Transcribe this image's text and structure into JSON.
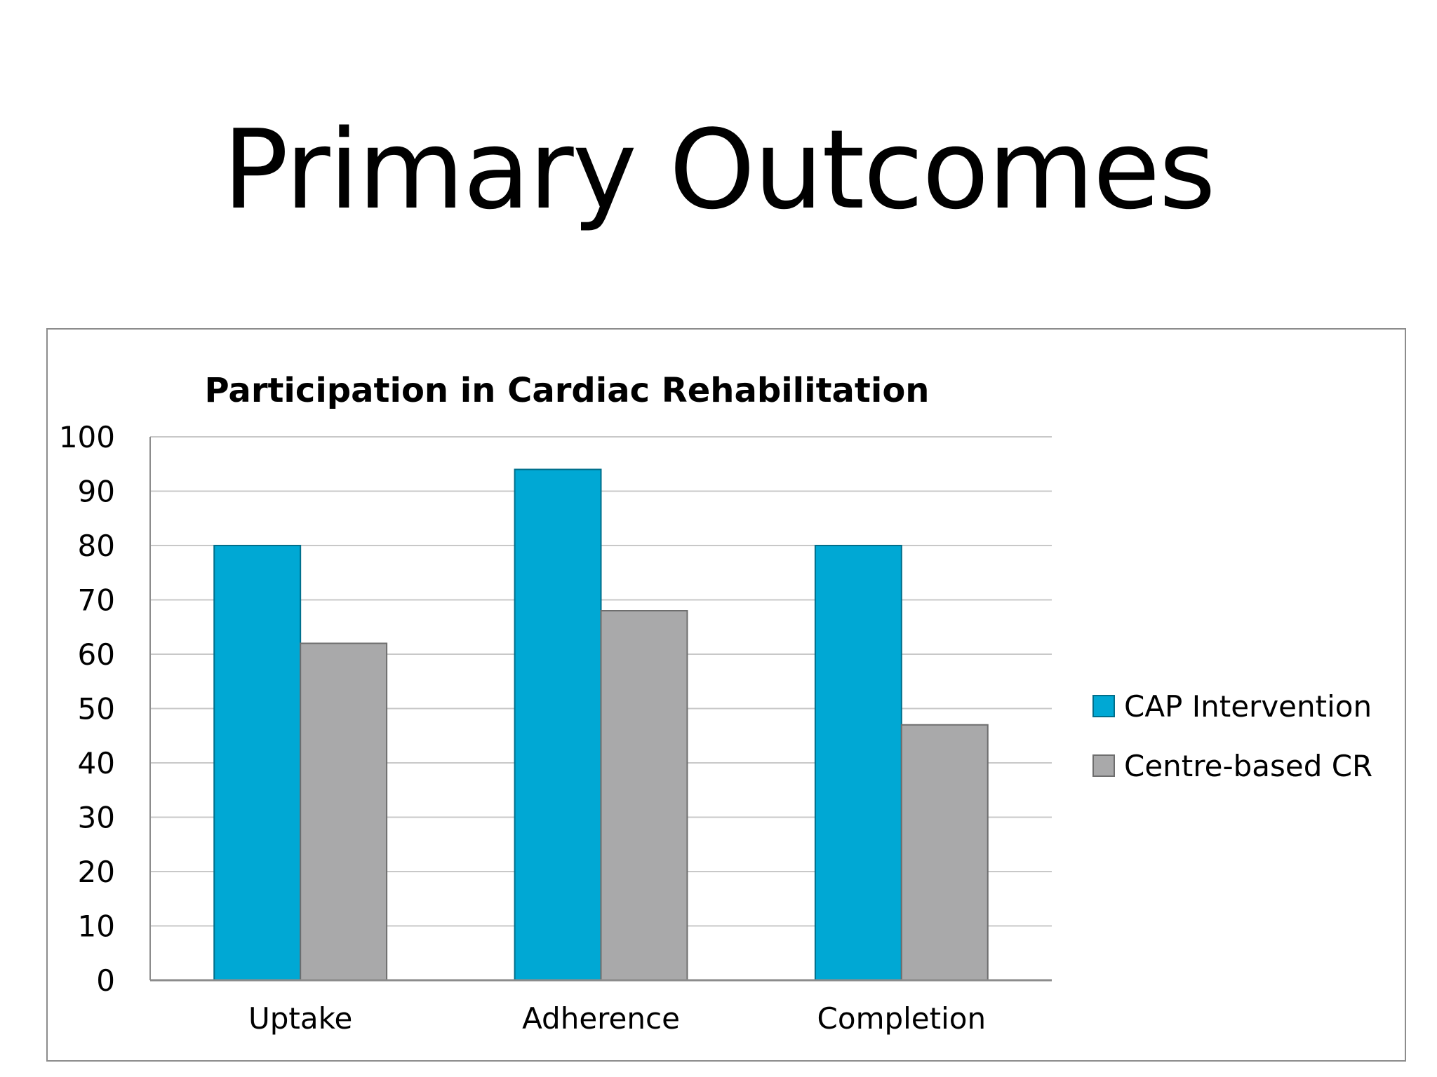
{
  "slide": {
    "title": "Primary Outcomes"
  },
  "colors": {
    "series_cap": "#00a8d4",
    "series_cap_border": "#006e8a",
    "series_centre": "#a9a9aa",
    "series_centre_border": "#6e6e6e",
    "gridline": "#c8c8c8",
    "axis": "#8c8c8c",
    "text": "#000000"
  },
  "chart_data": {
    "type": "bar",
    "title": "Participation  in Cardiac Rehabilitation",
    "xlabel": "",
    "ylabel": "",
    "categories": [
      "Uptake",
      "Adherence",
      "Completion"
    ],
    "series": [
      {
        "name": "CAP Intervention",
        "values": [
          80,
          94,
          80
        ]
      },
      {
        "name": "Centre-based CR",
        "values": [
          62,
          68,
          47
        ]
      }
    ],
    "ylim": [
      0,
      100
    ],
    "yticks": [
      "0",
      "10",
      "20",
      "30",
      "40",
      "50",
      "60",
      "70",
      "80",
      "90",
      "100"
    ],
    "grid": true,
    "legend": "right"
  }
}
